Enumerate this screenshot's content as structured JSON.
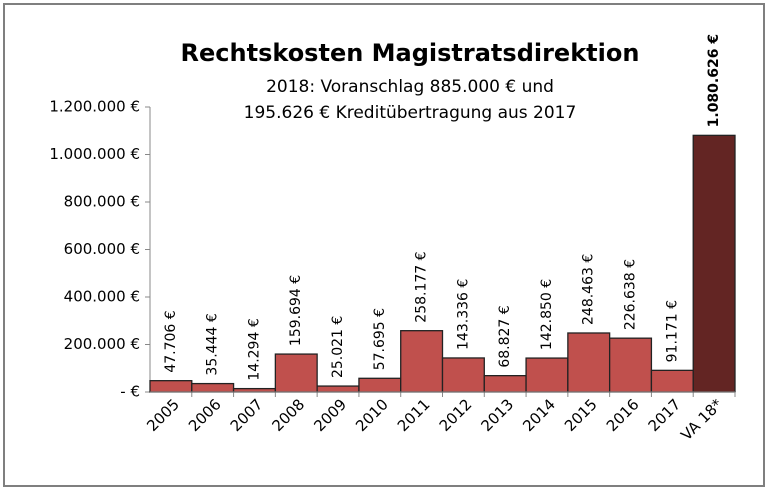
{
  "chart_data": {
    "type": "bar",
    "title": "Rechtskosten Magistratsdirektion",
    "subtitle": [
      "2018: Voranschlag 885.000 € und",
      "195.626 € Kreditübertragung aus 2017"
    ],
    "categories": [
      "2005",
      "2006",
      "2007",
      "2008",
      "2009",
      "2010",
      "2011",
      "2012",
      "2013",
      "2014",
      "2015",
      "2016",
      "2017",
      "VA 18*"
    ],
    "values": [
      47706,
      35444,
      14294,
      159694,
      25021,
      57695,
      258177,
      143336,
      68827,
      142850,
      248463,
      226638,
      91171,
      1080626
    ],
    "value_labels": [
      "47.706 €",
      "35.444 €",
      "14.294 €",
      "159.694 €",
      "25.021 €",
      "57.695 €",
      "258.177 €",
      "143.336 €",
      "68.827 €",
      "142.850 €",
      "248.463 €",
      "226.638 €",
      "91.171 €",
      "1.080.626 €"
    ],
    "colors": [
      "#c0504d",
      "#c0504d",
      "#c0504d",
      "#c0504d",
      "#c0504d",
      "#c0504d",
      "#c0504d",
      "#c0504d",
      "#c0504d",
      "#c0504d",
      "#c0504d",
      "#c0504d",
      "#c0504d",
      "#632523"
    ],
    "ylim": [
      0,
      1200000
    ],
    "yticks": [
      {
        "value": 0,
        "label": "-   €"
      },
      {
        "value": 200000,
        "label": "200.000 €"
      },
      {
        "value": 400000,
        "label": "400.000 €"
      },
      {
        "value": 600000,
        "label": "600.000 €"
      },
      {
        "value": 800000,
        "label": "800.000 €"
      },
      {
        "value": 1000000,
        "label": "1.000.000 €"
      },
      {
        "value": 1200000,
        "label": "1.200.000 €"
      }
    ],
    "grid": false
  }
}
